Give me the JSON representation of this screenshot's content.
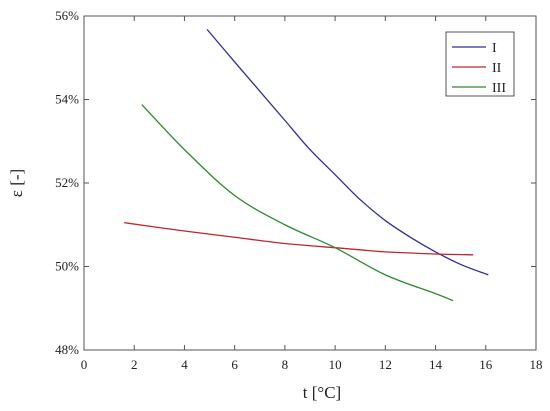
{
  "chart_data": {
    "type": "line",
    "xlabel": "t  [°C]",
    "ylabel": "ε  [-]",
    "xlim": [
      0,
      18
    ],
    "ylim": [
      48,
      56
    ],
    "x_ticks": [
      0,
      2,
      4,
      6,
      8,
      10,
      12,
      14,
      16,
      18
    ],
    "y_ticks": [
      48,
      50,
      52,
      54,
      56
    ],
    "x_tick_labels": [
      "0",
      "2",
      "4",
      "6",
      "8",
      "10",
      "12",
      "14",
      "16",
      "18"
    ],
    "y_tick_labels": [
      "48%",
      "50%",
      "52%",
      "54%",
      "56%"
    ],
    "grid": false,
    "legend_position": "top-right",
    "series": [
      {
        "name": "I",
        "color": "#2e2e9e",
        "x": [
          4.9,
          6,
          7,
          8,
          9,
          10,
          11,
          12,
          13,
          14,
          15,
          16.1
        ],
        "y": [
          55.68,
          54.9,
          54.2,
          53.5,
          52.8,
          52.2,
          51.6,
          51.1,
          50.7,
          50.35,
          50.05,
          49.8
        ]
      },
      {
        "name": "II",
        "color": "#c0262e",
        "x": [
          1.6,
          4,
          6,
          8,
          10,
          11,
          12,
          14,
          15.5
        ],
        "y": [
          51.05,
          50.85,
          50.7,
          50.55,
          50.45,
          50.4,
          50.35,
          50.3,
          50.28
        ]
      },
      {
        "name": "III",
        "color": "#2e8b2e",
        "x": [
          2.3,
          4,
          6,
          8,
          10,
          12,
          14,
          14.7
        ],
        "y": [
          53.88,
          52.8,
          51.7,
          51.0,
          50.45,
          49.8,
          49.35,
          49.18
        ]
      }
    ]
  }
}
